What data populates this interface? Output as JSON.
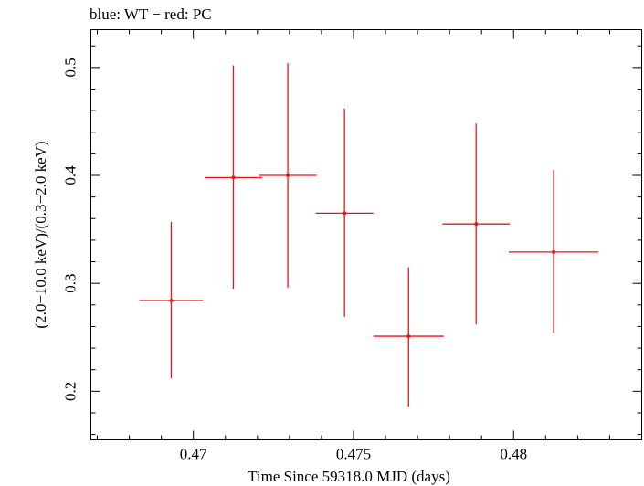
{
  "chart_data": {
    "type": "scatter",
    "title": "blue: WT − red: PC",
    "xlabel": "Time Since 59318.0 MJD (days)",
    "ylabel": "(2.0−10.0 keV)/(0.3−2.0 keV)",
    "xlim": [
      0.4668,
      0.484
    ],
    "ylim": [
      0.155,
      0.535
    ],
    "x_ticks": [
      0.47,
      0.475,
      0.48
    ],
    "x_tick_labels": [
      "0.47",
      "0.475",
      "0.48"
    ],
    "y_ticks": [
      0.2,
      0.3,
      0.4,
      0.5
    ],
    "y_tick_labels": [
      "0.2",
      "0.3",
      "0.4",
      "0.5"
    ],
    "grid": false,
    "series": [
      {
        "color": "#e8141c",
        "points": [
          {
            "x": 0.46931,
            "xerr": 0.001,
            "y": 0.284,
            "yerr_low": 0.072,
            "yerr_high": 0.073
          },
          {
            "x": 0.47125,
            "xerr": 0.0009,
            "y": 0.398,
            "yerr_low": 0.103,
            "yerr_high": 0.104
          },
          {
            "x": 0.47295,
            "xerr": 0.0009,
            "y": 0.4,
            "yerr_low": 0.104,
            "yerr_high": 0.104
          },
          {
            "x": 0.47472,
            "xerr": 0.0009,
            "y": 0.365,
            "yerr_low": 0.096,
            "yerr_high": 0.097
          },
          {
            "x": 0.47672,
            "xerr": 0.0011,
            "y": 0.251,
            "yerr_low": 0.065,
            "yerr_high": 0.064
          },
          {
            "x": 0.47883,
            "xerr": 0.00105,
            "y": 0.355,
            "yerr_low": 0.093,
            "yerr_high": 0.093
          },
          {
            "x": 0.48125,
            "xerr": 0.0014,
            "y": 0.329,
            "yerr_low": 0.075,
            "yerr_high": 0.076
          }
        ]
      }
    ]
  }
}
